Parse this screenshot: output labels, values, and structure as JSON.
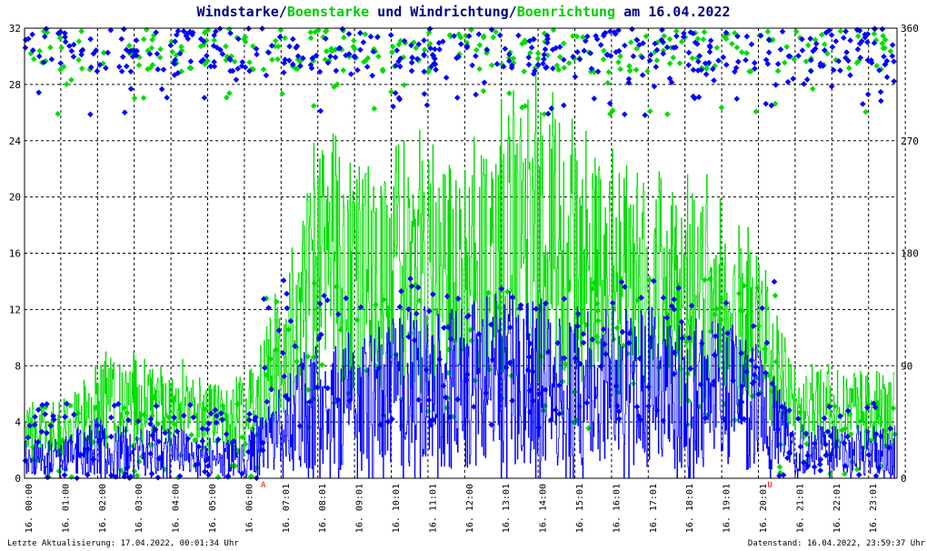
{
  "title": {
    "part1": "Windstarke",
    "sep1": "/",
    "part2": "Boenstarke",
    "part3": " und ",
    "part4": "Windrichtung",
    "sep2": "/",
    "part5": "Boenrichtung",
    "part6": " am 16.04.2022"
  },
  "footer": {
    "left": "Letzte Aktualisierung: 17.04.2022, 00:01:34 Uhr",
    "right": "Datenstand: 16.04.2022, 23:59:37 Uhr"
  },
  "colors": {
    "wind": "#0000ff",
    "gust": "#00dd00",
    "title_dark": "#000080",
    "title_green": "#00cc00",
    "marker": "#ff0000",
    "grid": "#000000"
  },
  "chart_data": {
    "type": "line",
    "y_left": {
      "min": 0,
      "max": 32,
      "ticks": [
        "0",
        "4",
        "8",
        "12",
        "16",
        "20",
        "24",
        "28",
        "32"
      ]
    },
    "y_right": {
      "min": 0,
      "max": 360,
      "ticks": [
        "0",
        "90",
        "180",
        "270",
        "360"
      ]
    },
    "x_ticks": [
      "16. 00:00",
      "16. 01:00",
      "16. 02:00",
      "16. 03:00",
      "16. 04:00",
      "16. 05:00",
      "16. 06:00",
      "16. 07:01",
      "16. 08:01",
      "16. 09:01",
      "16. 10:01",
      "16. 11:01",
      "16. 12:00",
      "16. 13:01",
      "16. 14:00",
      "16. 15:01",
      "16. 16:01",
      "16. 17:01",
      "16. 18:01",
      "16. 19:01",
      "16. 20:01",
      "16. 21:01",
      "16. 22:01",
      "16. 23:01"
    ],
    "markers": [
      {
        "label": "A",
        "hour": 6.5
      },
      {
        "label": "U",
        "hour": 20.3
      }
    ],
    "grid": true,
    "series": [
      {
        "name": "Windstarke",
        "axis": "left",
        "style": "line",
        "hourly_mean": [
          1.5,
          1.5,
          2.5,
          2.0,
          2.0,
          1.5,
          1.5,
          3.5,
          5.5,
          5.5,
          6.0,
          6.5,
          6.5,
          7.0,
          7.5,
          6.5,
          6.5,
          6.5,
          6.0,
          6.0,
          5.0,
          2.0,
          2.0,
          2.0
        ]
      },
      {
        "name": "Boenstarke",
        "axis": "left",
        "style": "line",
        "hourly_mean": [
          3.0,
          3.0,
          5.0,
          5.0,
          5.0,
          4.0,
          4.0,
          8.0,
          14.0,
          13.0,
          13.0,
          14.0,
          13.0,
          15.0,
          16.0,
          14.0,
          13.0,
          13.0,
          12.0,
          12.0,
          9.0,
          4.5,
          4.5,
          4.5
        ]
      },
      {
        "name": "Windrichtung",
        "axis": "right",
        "style": "points"
      },
      {
        "name": "Boenrichtung",
        "axis": "right",
        "style": "points"
      }
    ]
  }
}
